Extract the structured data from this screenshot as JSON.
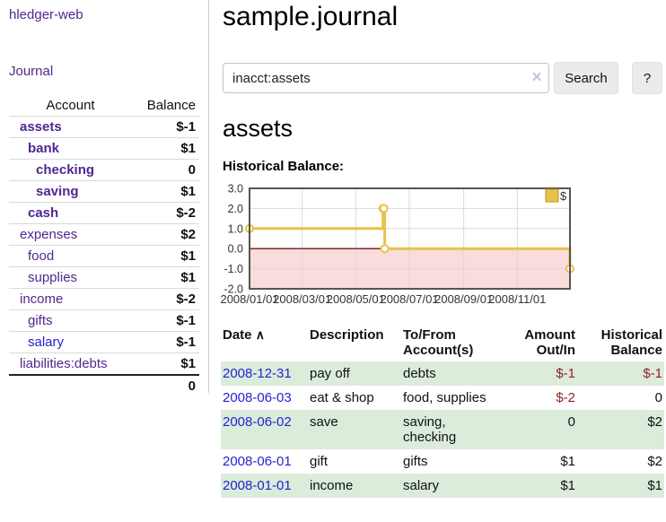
{
  "sidebar": {
    "brand": "hledger-web",
    "journal_link": "Journal",
    "table": {
      "col_account": "Account",
      "col_balance": "Balance",
      "accounts": [
        {
          "name": "assets",
          "balance": "$-1"
        },
        {
          "name": "bank",
          "balance": "$1"
        },
        {
          "name": "checking",
          "balance": "0"
        },
        {
          "name": "saving",
          "balance": "$1"
        },
        {
          "name": "cash",
          "balance": "$-2"
        },
        {
          "name": "expenses",
          "balance": "$2"
        },
        {
          "name": "food",
          "balance": "$1"
        },
        {
          "name": "supplies",
          "balance": "$1"
        },
        {
          "name": "income",
          "balance": "$-2"
        },
        {
          "name": "gifts",
          "balance": "$-1"
        },
        {
          "name": "salary",
          "balance": "$-1"
        },
        {
          "name": "liabilities:debts",
          "balance": "$1"
        }
      ],
      "total": "0"
    }
  },
  "main": {
    "title": "sample.journal",
    "search": {
      "value": "inacct:assets",
      "clear_icon": "×",
      "button_label": "Search",
      "help_label": "?"
    },
    "account_heading": "assets",
    "chart_label": "Historical Balance:",
    "register": {
      "headers": {
        "date": "Date",
        "sort_indicator": "∧",
        "description": "Description",
        "accounts": "To/From Account(s)",
        "amount": "Amount Out/In",
        "balance": "Historical Balance"
      },
      "rows": [
        {
          "date": "2008-12-31",
          "description": "pay off",
          "accounts": "debts",
          "amount": "$-1",
          "balance": "$-1"
        },
        {
          "date": "2008-06-03",
          "description": "eat & shop",
          "accounts": "food, supplies",
          "amount": "$-2",
          "balance": "0"
        },
        {
          "date": "2008-06-02",
          "description": "save",
          "accounts": "saving, checking",
          "amount": "0",
          "balance": "$2"
        },
        {
          "date": "2008-06-01",
          "description": "gift",
          "accounts": "gifts",
          "amount": "$1",
          "balance": "$2"
        },
        {
          "date": "2008-01-01",
          "description": "income",
          "accounts": "salary",
          "amount": "$1",
          "balance": "$1"
        }
      ]
    }
  },
  "colors": {
    "link_purple": "#50278f",
    "link_blue": "#2323d1",
    "negative_strong": "#7f1c1c",
    "negative_soft": "#b36b6b",
    "register_negative": "#8e2222",
    "row_stripe_green": "#dcecdb",
    "series_gold": "#e8c24a",
    "negative_zone_pink": "#f9dcdc",
    "zero_line_red": "#7a1010"
  },
  "chart_data": {
    "type": "line",
    "title": "Historical Balance:",
    "step": true,
    "series": [
      {
        "name": "$",
        "color": "#e8c24a",
        "points": [
          [
            "2008-01-01",
            1
          ],
          [
            "2008-06-01",
            2
          ],
          [
            "2008-06-02",
            2
          ],
          [
            "2008-06-03",
            0
          ],
          [
            "2008-12-31",
            -1
          ]
        ]
      }
    ],
    "x_range": [
      "2008-01-01",
      "2008-12-31"
    ],
    "ylim": [
      -2,
      3
    ],
    "y_ticks": [
      3.0,
      2.0,
      1.0,
      0.0,
      -1.0,
      -2.0
    ],
    "x_ticks": [
      "2008/01/01",
      "2008/03/01",
      "2008/05/01",
      "2008/07/01",
      "2008/09/01",
      "2008/11/01"
    ],
    "grid": true,
    "legend_position": "top-right",
    "negative_zone_filled": true
  }
}
